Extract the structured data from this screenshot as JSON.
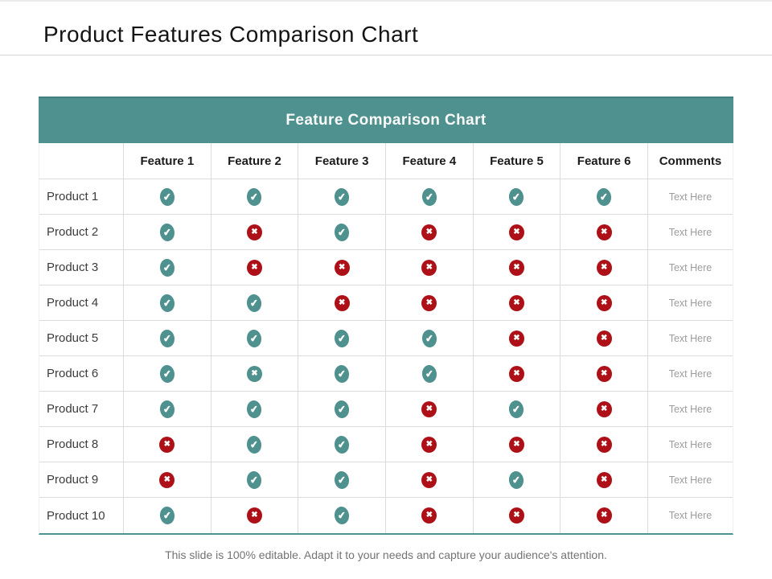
{
  "slide": {
    "title": "Product Features Comparison Chart",
    "footer": "This slide is 100% editable. Adapt it to your needs and capture your audience's attention."
  },
  "table": {
    "title": "Feature Comparison Chart",
    "columns": [
      "",
      "Feature 1",
      "Feature 2",
      "Feature 3",
      "Feature 4",
      "Feature 5",
      "Feature 6",
      "Comments"
    ],
    "rows": [
      {
        "label": "Product 1",
        "features": [
          "check",
          "check",
          "check",
          "check",
          "check",
          "check"
        ],
        "comment": "Text Here"
      },
      {
        "label": "Product 2",
        "features": [
          "check",
          "cross",
          "check",
          "cross",
          "cross",
          "cross"
        ],
        "comment": "Text Here"
      },
      {
        "label": "Product 3",
        "features": [
          "check",
          "cross",
          "cross",
          "cross",
          "cross",
          "cross"
        ],
        "comment": "Text Here"
      },
      {
        "label": "Product 4",
        "features": [
          "check",
          "check",
          "cross",
          "cross",
          "cross",
          "cross"
        ],
        "comment": "Text Here"
      },
      {
        "label": "Product 5",
        "features": [
          "check",
          "check",
          "check",
          "check",
          "cross",
          "cross"
        ],
        "comment": "Text Here"
      },
      {
        "label": "Product 6",
        "features": [
          "check",
          "cross-teal",
          "check",
          "check",
          "cross",
          "cross"
        ],
        "comment": "Text Here"
      },
      {
        "label": "Product 7",
        "features": [
          "check",
          "check",
          "check",
          "cross",
          "check",
          "cross"
        ],
        "comment": "Text Here"
      },
      {
        "label": "Product 8",
        "features": [
          "cross",
          "check",
          "check",
          "cross",
          "cross",
          "cross"
        ],
        "comment": "Text Here"
      },
      {
        "label": "Product 9",
        "features": [
          "cross",
          "check",
          "check",
          "cross",
          "check",
          "cross"
        ],
        "comment": "Text Here"
      },
      {
        "label": "Product 10",
        "features": [
          "check",
          "cross",
          "check",
          "cross",
          "cross",
          "cross"
        ],
        "comment": "Text Here"
      }
    ]
  },
  "icons": {
    "check": "✔",
    "cross": "✖"
  },
  "colors": {
    "teal": "#4f918e",
    "red": "#ad1117",
    "grid_line": "#dcdcdc"
  }
}
